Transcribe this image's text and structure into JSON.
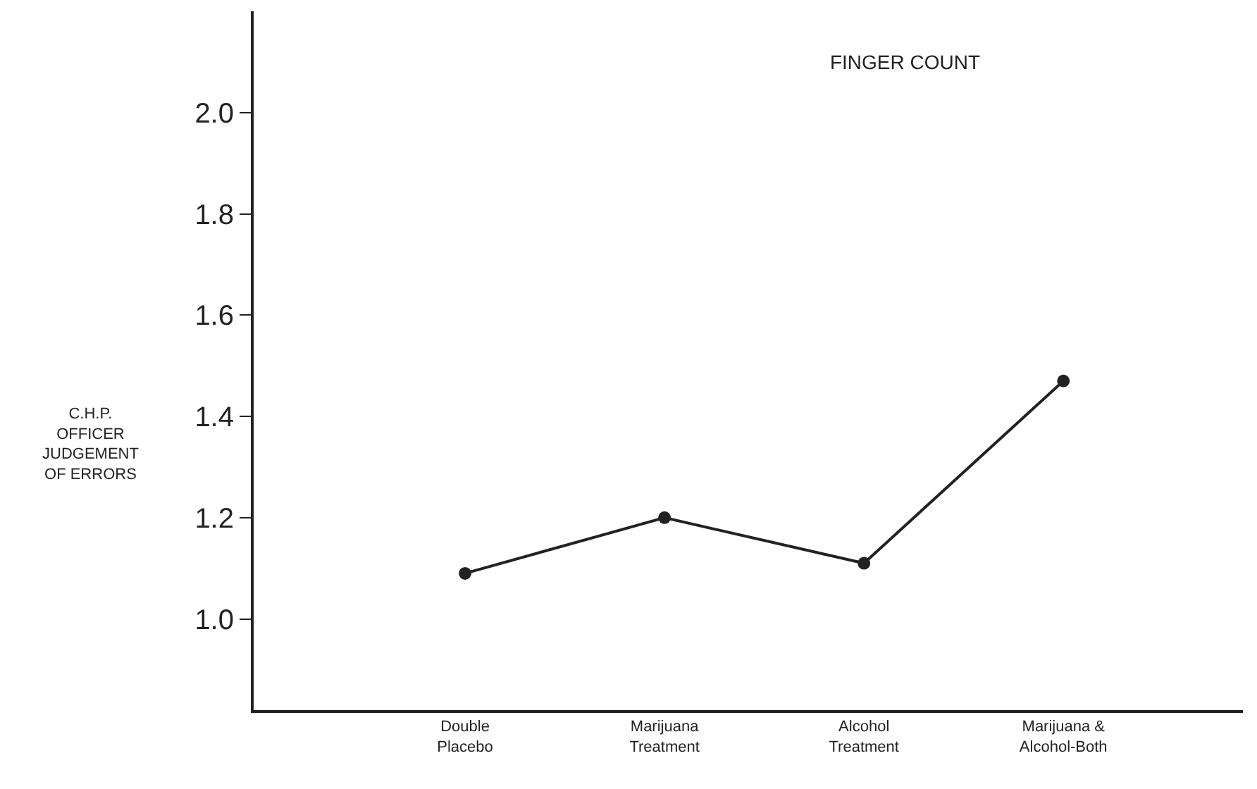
{
  "chart_data": {
    "type": "line",
    "title": "FINGER COUNT",
    "ylabel": "C.H.P.\nOFFICER\nJUDGEMENT\nOF ERRORS",
    "categories": [
      "Double\nPlacebo",
      "Marijuana\nTreatment",
      "Alcohol\nTreatment",
      "Marijuana &\nAlcohol-Both"
    ],
    "series": [
      {
        "color": "#222222",
        "values": [
          1.09,
          1.2,
          1.11,
          1.47
        ]
      }
    ],
    "ylim": [
      0.82,
      2.2
    ],
    "yticks": [
      {
        "value": 1,
        "label": "1.0"
      },
      {
        "value": 1.2,
        "label": "1.2"
      },
      {
        "value": 1.4,
        "label": "1.4"
      },
      {
        "value": 1.6,
        "label": "1.6"
      },
      {
        "value": 1.8,
        "label": "1.8"
      },
      {
        "value": 2,
        "label": "2.0"
      }
    ],
    "grid": false,
    "legend": false,
    "marker": "circle",
    "line_style": "solid"
  }
}
